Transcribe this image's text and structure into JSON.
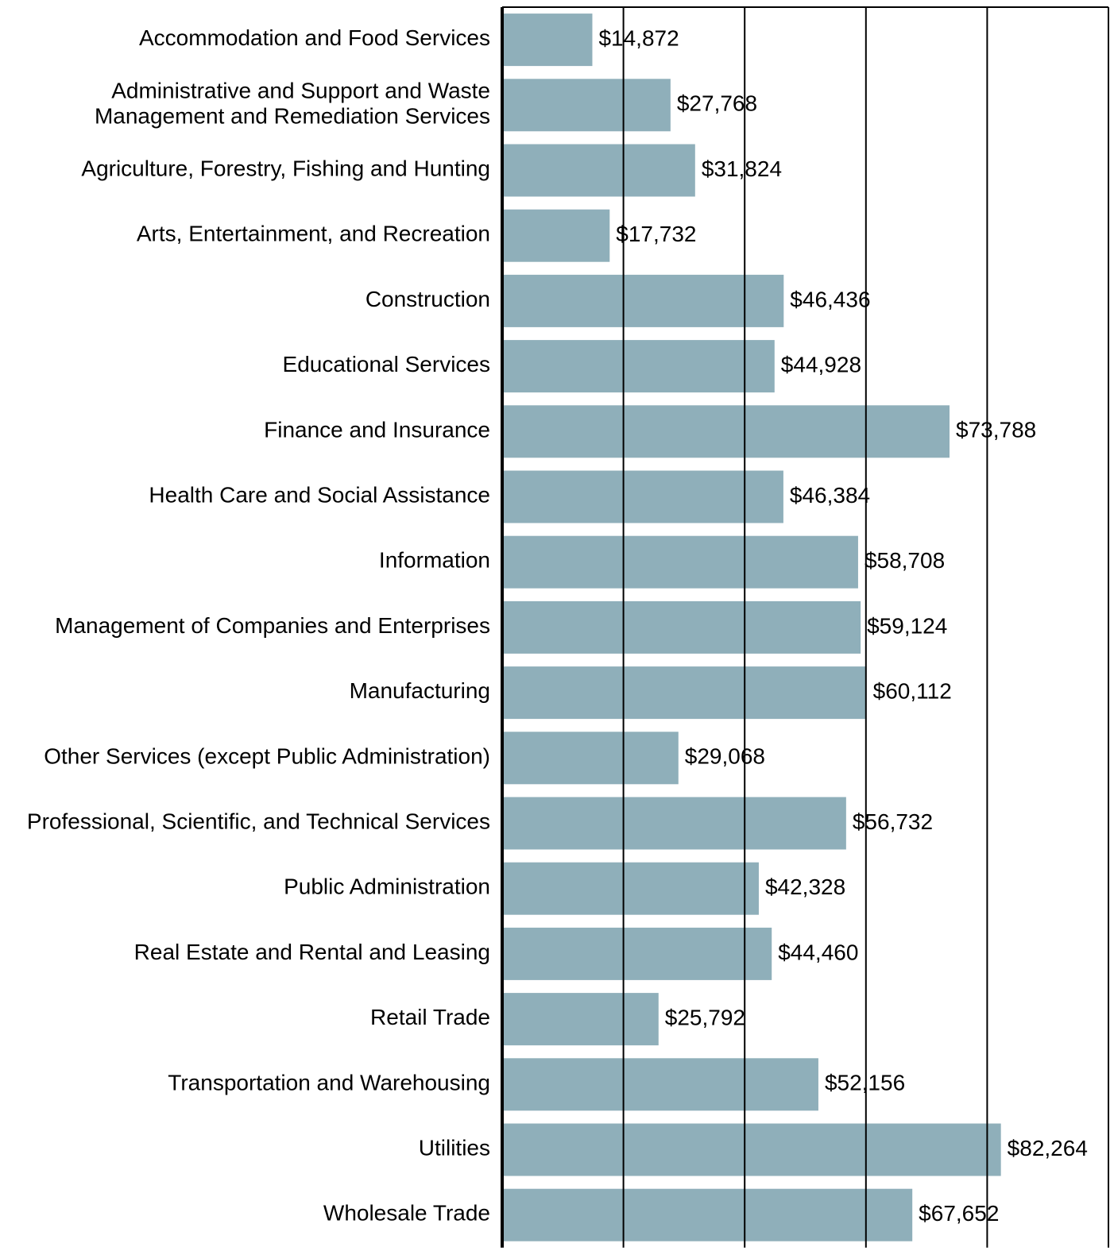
{
  "chart_data": {
    "type": "barh",
    "categories": [
      "Accommodation and Food Services",
      "Administrative and Support and Waste\nManagement and Remediation Services",
      "Agriculture, Forestry, Fishing and Hunting",
      "Arts, Entertainment, and Recreation",
      "Construction",
      "Educational Services",
      "Finance and Insurance",
      "Health Care and Social Assistance",
      "Information",
      "Management of Companies and Enterprises",
      "Manufacturing",
      "Other Services (except Public Administration)",
      "Professional, Scientific, and Technical Services",
      "Public Administration",
      "Real Estate and Rental and Leasing",
      "Retail Trade",
      "Transportation and Warehousing",
      "Utilities",
      "Wholesale Trade"
    ],
    "values": [
      14872,
      27768,
      31824,
      17732,
      46436,
      44928,
      73788,
      46384,
      58708,
      59124,
      60112,
      29068,
      56732,
      42328,
      44460,
      25792,
      52156,
      82264,
      67652
    ],
    "value_labels": [
      "$14,872",
      "$27,768",
      "$31,824",
      "$17,732",
      "$46,436",
      "$44,928",
      "$73,788",
      "$46,384",
      "$58,708",
      "$59,124",
      "$60,112",
      "$29,068",
      "$56,732",
      "$42,328",
      "$44,460",
      "$25,792",
      "$52,156",
      "$82,264",
      "$67,652"
    ],
    "color": "#8fafba",
    "xlim": [
      0,
      100000
    ],
    "xticks": [
      0,
      20000,
      40000,
      60000,
      80000,
      100000
    ],
    "grid": true
  }
}
